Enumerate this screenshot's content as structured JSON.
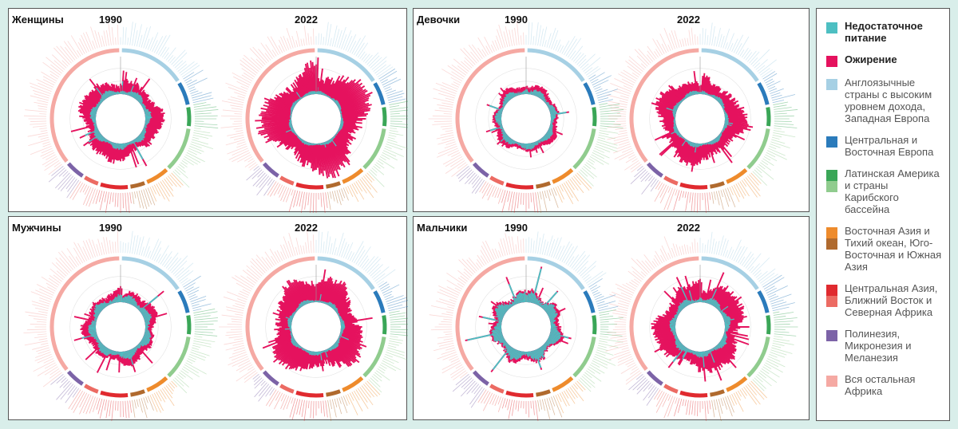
{
  "panels": [
    {
      "title": "Женщины",
      "year_left": "1990",
      "year_right": "2022"
    },
    {
      "title": "Девочки",
      "year_left": "1990",
      "year_right": "2022"
    },
    {
      "title": "Мужчины",
      "year_left": "1990",
      "year_right": "2022"
    },
    {
      "title": "Мальчики",
      "year_left": "1990",
      "year_right": "2022"
    }
  ],
  "legend": {
    "items": [
      {
        "label": "Недостаточное питание",
        "colors": [
          "#4dbfc2"
        ],
        "bold": true
      },
      {
        "label": "Ожирение",
        "colors": [
          "#e5125e"
        ],
        "bold": true
      },
      {
        "label": "Англоязычные страны с высоким уровнем дохода, Западная Европа",
        "colors": [
          "#a6d0e4"
        ],
        "bold": false
      },
      {
        "label": "Центральная и Восточная Европа",
        "colors": [
          "#2b7bbb"
        ],
        "bold": false
      },
      {
        "label": "Латинская Америка и страны Карибского бассейна",
        "colors": [
          "#3aa657",
          "#90cc8e"
        ],
        "bold": false
      },
      {
        "label": "Восточная Азия и Тихий океан, Юго-Восточная и Южная Азия",
        "colors": [
          "#ee8b2c",
          "#b06a2e"
        ],
        "bold": false
      },
      {
        "label": "Центральная Азия, Ближний Восток и Северная Африка",
        "colors": [
          "#e02a2f",
          "#ec6b63"
        ],
        "bold": false
      },
      {
        "label": "Полинезия, Микронезия и Меланезия",
        "colors": [
          "#7c63a7"
        ],
        "bold": false
      },
      {
        "label": "Вся остальная Африка",
        "colors": [
          "#f5a9a3"
        ],
        "bold": false
      }
    ]
  },
  "chart_data": [
    {
      "type": "radial-bar",
      "group": "Женщины",
      "year": "1990",
      "categories_count": 200,
      "series": [
        {
          "color": "#4dbfc2",
          "level": 0.12,
          "max_spike": 0.55
        },
        {
          "color": "#e5125e",
          "level": 0.22,
          "max_spike": 0.62
        }
      ]
    },
    {
      "type": "radial-bar",
      "group": "Женщины",
      "year": "2022",
      "categories_count": 200,
      "series": [
        {
          "color": "#4dbfc2",
          "level": 0.06,
          "max_spike": 0.25
        },
        {
          "color": "#e5125e",
          "level": 0.5,
          "max_spike": 0.95
        }
      ]
    },
    {
      "type": "radial-bar",
      "group": "Девочки",
      "year": "1990",
      "categories_count": 200,
      "series": [
        {
          "color": "#4dbfc2",
          "level": 0.12,
          "max_spike": 0.45
        },
        {
          "color": "#e5125e",
          "level": 0.08,
          "max_spike": 0.3
        }
      ]
    },
    {
      "type": "radial-bar",
      "group": "Девочки",
      "year": "2022",
      "categories_count": 200,
      "series": [
        {
          "color": "#4dbfc2",
          "level": 0.08,
          "max_spike": 0.3
        },
        {
          "color": "#e5125e",
          "level": 0.3,
          "max_spike": 0.72
        }
      ]
    },
    {
      "type": "radial-bar",
      "group": "Мужчины",
      "year": "1990",
      "categories_count": 200,
      "series": [
        {
          "color": "#4dbfc2",
          "level": 0.15,
          "max_spike": 0.62
        },
        {
          "color": "#e5125e",
          "level": 0.12,
          "max_spike": 0.5
        }
      ]
    },
    {
      "type": "radial-bar",
      "group": "Мужчины",
      "year": "2022",
      "categories_count": 200,
      "series": [
        {
          "color": "#4dbfc2",
          "level": 0.08,
          "max_spike": 0.3
        },
        {
          "color": "#e5125e",
          "level": 0.38,
          "max_spike": 0.85
        }
      ]
    },
    {
      "type": "radial-bar",
      "group": "Мальчики",
      "year": "1990",
      "categories_count": 200,
      "series": [
        {
          "color": "#4dbfc2",
          "level": 0.2,
          "max_spike": 0.95
        },
        {
          "color": "#e5125e",
          "level": 0.06,
          "max_spike": 0.3
        }
      ]
    },
    {
      "type": "radial-bar",
      "group": "Мальчики",
      "year": "2022",
      "categories_count": 200,
      "series": [
        {
          "color": "#4dbfc2",
          "level": 0.12,
          "max_spike": 0.5
        },
        {
          "color": "#e5125e",
          "level": 0.3,
          "max_spike": 0.7
        }
      ]
    }
  ]
}
